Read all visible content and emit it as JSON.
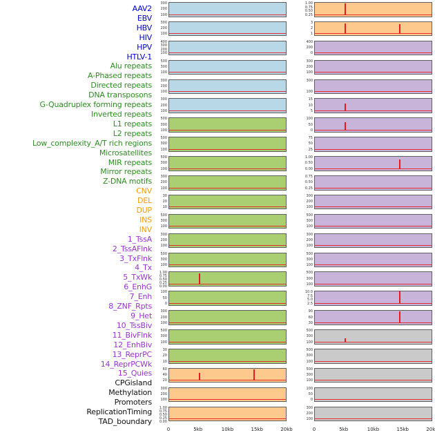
{
  "chart_data": {
    "type": "line",
    "description": "Genomic feature signal tracks around two loci; red signal line with spikes on colored category backgrounds",
    "signal_color": "#e8191f",
    "x_axis": {
      "tick_labels": [
        "0",
        "5kb",
        "10kb",
        "15kb",
        "20kb"
      ],
      "range_bp": [
        0,
        20000
      ]
    },
    "palette": {
      "label": {
        "blue": "#0000cd",
        "green": "#2e8b22",
        "orange": "#f39c00",
        "purple": "#9932cc",
        "black": "#111111"
      },
      "panel": {
        "blue": "#b8d8e8",
        "green": "#a9cf72",
        "orange": "#fdc98c",
        "purple": "#c9b4d9",
        "gray": "#cacaca"
      }
    },
    "panel_rows": [
      {
        "labels": [
          {
            "text": "AAV2",
            "color": "blue"
          },
          {
            "text": "EBV",
            "color": "blue"
          }
        ],
        "left": {
          "bg": "blue",
          "yticks": [
            "300",
            "200",
            "100"
          ],
          "spikes": []
        },
        "right": {
          "bg": "orange",
          "yticks": [
            "1.00",
            "0.75",
            "0.50",
            "0.25"
          ],
          "spikes": [
            {
              "x": 0.26,
              "h": 0.85
            }
          ]
        }
      },
      {
        "labels": [
          {
            "text": "HBV",
            "color": "blue"
          },
          {
            "text": "HIV",
            "color": "blue"
          }
        ],
        "left": {
          "bg": "blue",
          "yticks": [
            "300",
            "200",
            "100"
          ],
          "spikes": []
        },
        "right": {
          "bg": "orange",
          "yticks": [
            "3",
            "2",
            "1"
          ],
          "spikes": [
            {
              "x": 0.26,
              "h": 0.8
            },
            {
              "x": 0.73,
              "h": 0.75
            }
          ]
        }
      },
      {
        "labels": [
          {
            "text": "HPV",
            "color": "blue"
          },
          {
            "text": "HTLV-1",
            "color": "blue"
          }
        ],
        "left": {
          "bg": "blue",
          "yticks": [
            "400",
            "300",
            "200",
            "100"
          ],
          "spikes": []
        },
        "right": {
          "bg": "purple",
          "yticks": [
            "400",
            "200",
            "0"
          ],
          "spikes": []
        }
      },
      {
        "labels": [
          {
            "text": "Alu repeats",
            "color": "green"
          },
          {
            "text": "A-Phased repeats",
            "color": "green"
          }
        ],
        "left": {
          "bg": "blue",
          "yticks": [
            "500",
            "300",
            "100"
          ],
          "spikes": []
        },
        "right": {
          "bg": "purple",
          "yticks": [
            "300",
            "200",
            "100"
          ],
          "spikes": []
        }
      },
      {
        "labels": [
          {
            "text": "Directed repeats",
            "color": "green"
          },
          {
            "text": "DNA transposons",
            "color": "green"
          }
        ],
        "left": {
          "bg": "blue",
          "yticks": [
            "300",
            "200",
            "100"
          ],
          "spikes": []
        },
        "right": {
          "bg": "purple",
          "yticks": [
            "300",
            "100"
          ],
          "spikes": []
        }
      },
      {
        "labels": [
          {
            "text": "G-Quadruplex forming repeats",
            "color": "green"
          },
          {
            "text": "Inverted repeats",
            "color": "green"
          }
        ],
        "left": {
          "bg": "blue",
          "yticks": [
            "300",
            "200",
            "100"
          ],
          "spikes": []
        },
        "right": {
          "bg": "purple",
          "yticks": [
            "15",
            "10",
            "5"
          ],
          "spikes": [
            {
              "x": 0.26,
              "h": 0.55
            }
          ]
        }
      },
      {
        "labels": [
          {
            "text": "L1 repeats",
            "color": "green"
          },
          {
            "text": "L2 repeats",
            "color": "green"
          }
        ],
        "left": {
          "bg": "green",
          "yticks": [
            "500",
            "300",
            "100"
          ],
          "spikes": []
        },
        "right": {
          "bg": "purple",
          "yticks": [
            "100",
            "50",
            "0"
          ],
          "spikes": [
            {
              "x": 0.26,
              "h": 0.6
            }
          ]
        }
      },
      {
        "labels": [
          {
            "text": "Low_complexity_A/T rich regions",
            "color": "green"
          },
          {
            "text": "Microsatellites",
            "color": "green"
          }
        ],
        "left": {
          "bg": "green",
          "yticks": [
            "500",
            "300",
            "100"
          ],
          "spikes": []
        },
        "right": {
          "bg": "purple",
          "yticks": [
            "75",
            "50",
            "25"
          ],
          "spikes": []
        }
      },
      {
        "labels": [
          {
            "text": "MIR repeats",
            "color": "green"
          },
          {
            "text": "Mirror repeats",
            "color": "green"
          }
        ],
        "left": {
          "bg": "green",
          "yticks": [
            "500",
            "300",
            "100"
          ],
          "spikes": []
        },
        "right": {
          "bg": "purple",
          "yticks": [
            "1.00",
            "0.50",
            "0.00"
          ],
          "spikes": [
            {
              "x": 0.73,
              "h": 0.7
            }
          ]
        }
      },
      {
        "labels": [
          {
            "text": "Z-DNA motifs",
            "color": "green"
          },
          {
            "text": "CNV",
            "color": "orange"
          }
        ],
        "left": {
          "bg": "green",
          "yticks": [
            "300",
            "200",
            "100"
          ],
          "spikes": []
        },
        "right": {
          "bg": "purple",
          "yticks": [
            "0.75",
            "0.50",
            "0.25"
          ],
          "spikes": []
        }
      },
      {
        "labels": [
          {
            "text": "DEL",
            "color": "orange"
          },
          {
            "text": "DUP",
            "color": "orange"
          }
        ],
        "left": {
          "bg": "green",
          "yticks": [
            "30",
            "20",
            "10"
          ],
          "spikes": []
        },
        "right": {
          "bg": "purple",
          "yticks": [
            "300",
            "200",
            "100"
          ],
          "spikes": []
        }
      },
      {
        "labels": [
          {
            "text": "INS",
            "color": "orange"
          },
          {
            "text": "INV",
            "color": "orange"
          }
        ],
        "left": {
          "bg": "green",
          "yticks": [
            "500",
            "300",
            "100"
          ],
          "spikes": []
        },
        "right": {
          "bg": "purple",
          "yticks": [
            "500",
            "300",
            "100"
          ],
          "spikes": []
        }
      },
      {
        "labels": [
          {
            "text": "1_TssA",
            "color": "purple"
          },
          {
            "text": "2_TssAFlnk",
            "color": "purple"
          }
        ],
        "left": {
          "bg": "green",
          "yticks": [
            "300",
            "200",
            "100"
          ],
          "spikes": []
        },
        "right": {
          "bg": "purple",
          "yticks": [
            "300",
            "200",
            "100"
          ],
          "spikes": []
        }
      },
      {
        "labels": [
          {
            "text": "3_TxFlnk",
            "color": "purple"
          },
          {
            "text": "4_Tx",
            "color": "purple"
          }
        ],
        "left": {
          "bg": "green",
          "yticks": [
            "500",
            "300",
            "100"
          ],
          "spikes": []
        },
        "right": {
          "bg": "purple",
          "yticks": [
            "500",
            "300",
            "100"
          ],
          "spikes": []
        }
      },
      {
        "labels": [
          {
            "text": "5_TxWk",
            "color": "purple"
          },
          {
            "text": "6_EnhG",
            "color": "purple"
          }
        ],
        "left": {
          "bg": "green",
          "yticks": [
            "1.00",
            "0.75",
            "0.50",
            "0.25",
            "0.00"
          ],
          "spikes": [
            {
              "x": 0.26,
              "h": 0.8
            }
          ]
        },
        "right": {
          "bg": "purple",
          "yticks": [
            "500",
            "300",
            "100"
          ],
          "spikes": []
        }
      },
      {
        "labels": [
          {
            "text": "7_Enh",
            "color": "purple"
          },
          {
            "text": "8_ZNF_Rpts",
            "color": "purple"
          }
        ],
        "left": {
          "bg": "green",
          "yticks": [
            "100",
            "50",
            "0"
          ],
          "spikes": []
        },
        "right": {
          "bg": "purple",
          "yticks": [
            "10.0",
            "7.5",
            "5.0",
            "2.5"
          ],
          "spikes": [
            {
              "x": 0.73,
              "h": 0.9
            }
          ]
        }
      },
      {
        "labels": [
          {
            "text": "9_Het",
            "color": "purple"
          },
          {
            "text": "10_TssBiv",
            "color": "purple"
          }
        ],
        "left": {
          "bg": "green",
          "yticks": [
            "300",
            "200",
            "100"
          ],
          "spikes": []
        },
        "right": {
          "bg": "purple",
          "yticks": [
            "90",
            "60",
            "30"
          ],
          "spikes": [
            {
              "x": 0.73,
              "h": 0.85
            }
          ]
        }
      },
      {
        "labels": [
          {
            "text": "11_BivFlnk",
            "color": "purple"
          },
          {
            "text": "12_EnhBiv",
            "color": "purple"
          }
        ],
        "left": {
          "bg": "green",
          "yticks": [
            "500",
            "300",
            "100"
          ],
          "spikes": []
        },
        "right": {
          "bg": "gray",
          "yticks": [
            "500",
            "300",
            "100"
          ],
          "spikes": [
            {
              "x": 0.26,
              "h": 0.3
            }
          ]
        }
      },
      {
        "labels": [
          {
            "text": "13_ReprPC",
            "color": "purple"
          },
          {
            "text": "14_ReprPCWk",
            "color": "purple"
          }
        ],
        "left": {
          "bg": "green",
          "yticks": [
            "30",
            "20",
            "10"
          ],
          "spikes": []
        },
        "right": {
          "bg": "gray",
          "yticks": [
            "500",
            "300",
            "100"
          ],
          "spikes": []
        }
      },
      {
        "labels": [
          {
            "text": "15_Quies",
            "color": "purple"
          },
          {
            "text": "CPGisland",
            "color": "black"
          }
        ],
        "left": {
          "bg": "orange",
          "yticks": [
            "60",
            "40",
            "20"
          ],
          "spikes": [
            {
              "x": 0.26,
              "h": 0.6
            },
            {
              "x": 0.73,
              "h": 0.85
            }
          ]
        },
        "right": {
          "bg": "gray",
          "yticks": [
            "500",
            "300",
            "100"
          ],
          "spikes": []
        }
      },
      {
        "labels": [
          {
            "text": "Methylation",
            "color": "black"
          },
          {
            "text": "Promoters",
            "color": "black"
          }
        ],
        "left": {
          "bg": "orange",
          "yticks": [
            "300",
            "200",
            "100"
          ],
          "spikes": []
        },
        "right": {
          "bg": "gray",
          "yticks": [
            "100",
            "50",
            "0"
          ],
          "spikes": []
        }
      },
      {
        "labels": [
          {
            "text": "ReplicationTiming",
            "color": "black"
          },
          {
            "text": "TAD_boundary",
            "color": "black"
          }
        ],
        "left": {
          "bg": "orange",
          "yticks": [
            "1.00",
            "0.75",
            "0.50",
            "0.25",
            "0.00"
          ],
          "spikes": []
        },
        "right": {
          "bg": "gray",
          "yticks": [
            "300",
            "200",
            "100"
          ],
          "spikes": []
        }
      }
    ]
  }
}
